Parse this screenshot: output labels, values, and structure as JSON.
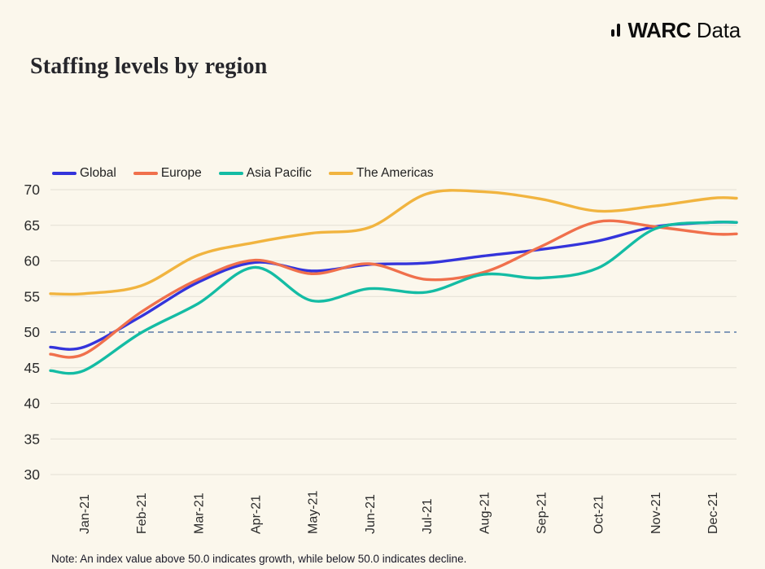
{
  "logo": {
    "brand_bold": "WARC",
    "brand_regular": "Data"
  },
  "title": "Staffing levels by region",
  "note": "Note: An index value above 50.0 indicates growth, while below 50.0 indicates decline.",
  "colors": {
    "background": "#FBF7EC",
    "grid": "#E3DFD3",
    "reference_line": "#5B7CA8",
    "text": "#2B2B2B"
  },
  "chart_data": {
    "type": "line",
    "title": "Staffing levels by region",
    "x": [
      "Jan-21",
      "Feb-21",
      "Mar-21",
      "Apr-21",
      "May-21",
      "Jun-21",
      "Jul-21",
      "Aug-21",
      "Sep-21",
      "Oct-21",
      "Nov-21",
      "Dec-21"
    ],
    "series": [
      {
        "name": "Global",
        "color": "#3434DB",
        "values": [
          47.9,
          52.2,
          57.0,
          59.8,
          58.6,
          59.5,
          59.7,
          60.7,
          61.6,
          62.8,
          64.8,
          65.4
        ]
      },
      {
        "name": "Europe",
        "color": "#F0704C",
        "values": [
          46.9,
          52.8,
          57.4,
          60.1,
          58.2,
          59.6,
          57.4,
          58.4,
          62.0,
          65.5,
          64.8,
          63.8
        ]
      },
      {
        "name": "Asia Pacific",
        "color": "#14BCA4",
        "values": [
          44.6,
          49.9,
          54.0,
          59.1,
          54.4,
          56.1,
          55.6,
          58.1,
          57.6,
          59.0,
          64.5,
          65.4
        ]
      },
      {
        "name": "The Americas",
        "color": "#F1B43F",
        "values": [
          55.4,
          56.5,
          60.8,
          62.6,
          63.9,
          64.7,
          69.4,
          69.7,
          68.7,
          67.0,
          67.7,
          68.8
        ]
      }
    ],
    "ylabel": "",
    "xlabel": "",
    "ylim": [
      30,
      70
    ],
    "yticks": [
      30,
      35,
      40,
      45,
      50,
      55,
      60,
      65,
      70
    ],
    "reference_line": {
      "value": 50,
      "style": "dashed"
    },
    "grid": true,
    "legend_position": "top"
  }
}
